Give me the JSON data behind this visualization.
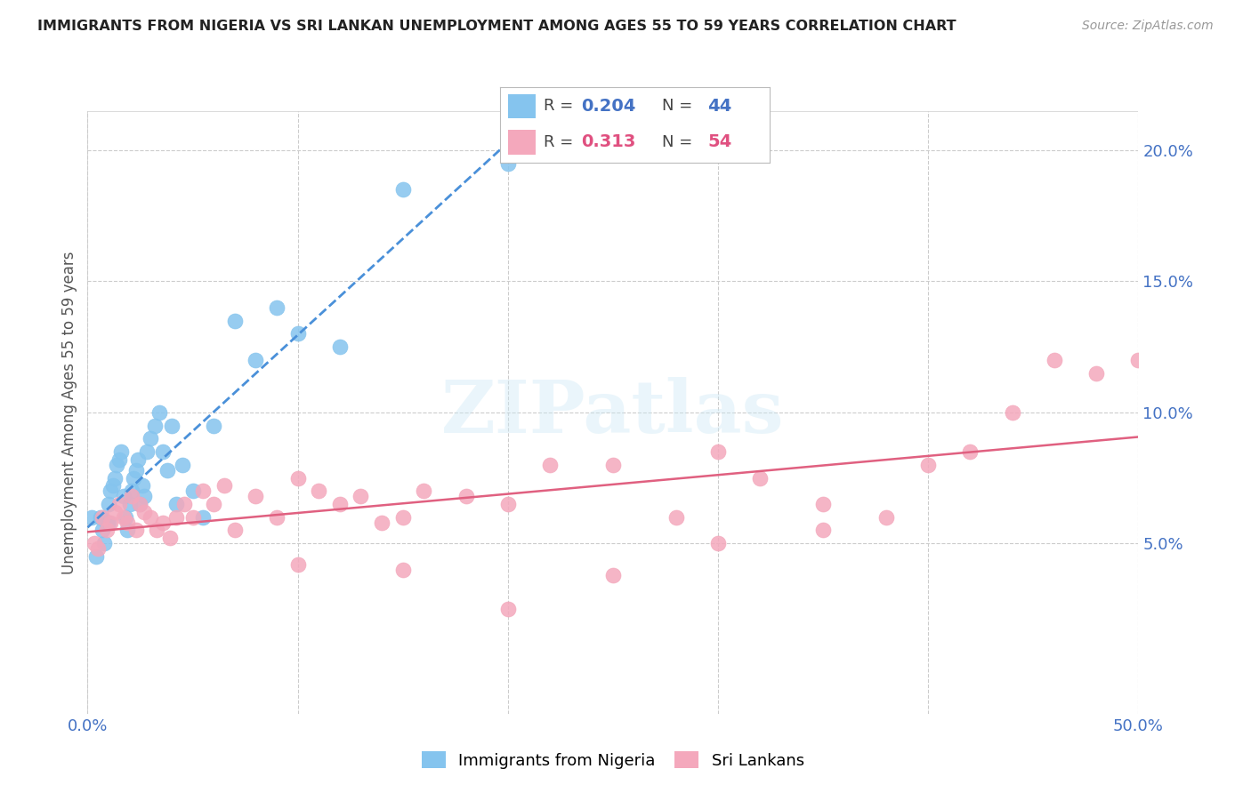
{
  "title": "IMMIGRANTS FROM NIGERIA VS SRI LANKAN UNEMPLOYMENT AMONG AGES 55 TO 59 YEARS CORRELATION CHART",
  "source": "Source: ZipAtlas.com",
  "ylabel": "Unemployment Among Ages 55 to 59 years",
  "xlim": [
    0.0,
    0.5
  ],
  "ylim": [
    -0.015,
    0.215
  ],
  "x_tick_positions": [
    0.0,
    0.1,
    0.2,
    0.3,
    0.4,
    0.5
  ],
  "x_tick_labels": [
    "0.0%",
    "",
    "",
    "",
    "",
    "50.0%"
  ],
  "y_tick_positions": [
    0.05,
    0.1,
    0.15,
    0.2
  ],
  "y_tick_labels": [
    "5.0%",
    "10.0%",
    "15.0%",
    "20.0%"
  ],
  "nigeria_color": "#85c4ee",
  "srilankan_color": "#f4a8bc",
  "nigeria_line_color": "#4a90d9",
  "srilankan_line_color": "#e06080",
  "nigeria_x": [
    0.002,
    0.004,
    0.006,
    0.007,
    0.008,
    0.009,
    0.01,
    0.01,
    0.011,
    0.012,
    0.013,
    0.014,
    0.015,
    0.016,
    0.017,
    0.018,
    0.019,
    0.02,
    0.021,
    0.022,
    0.023,
    0.024,
    0.025,
    0.026,
    0.027,
    0.028,
    0.03,
    0.032,
    0.034,
    0.036,
    0.038,
    0.04,
    0.042,
    0.045,
    0.05,
    0.055,
    0.06,
    0.07,
    0.08,
    0.09,
    0.1,
    0.12,
    0.15,
    0.2
  ],
  "nigeria_y": [
    0.06,
    0.045,
    0.06,
    0.055,
    0.05,
    0.058,
    0.065,
    0.058,
    0.07,
    0.072,
    0.075,
    0.08,
    0.082,
    0.085,
    0.068,
    0.06,
    0.055,
    0.065,
    0.07,
    0.075,
    0.078,
    0.082,
    0.065,
    0.072,
    0.068,
    0.085,
    0.09,
    0.095,
    0.1,
    0.085,
    0.078,
    0.095,
    0.065,
    0.08,
    0.07,
    0.06,
    0.095,
    0.135,
    0.12,
    0.14,
    0.13,
    0.125,
    0.185,
    0.195
  ],
  "srilankan_x": [
    0.003,
    0.005,
    0.007,
    0.009,
    0.011,
    0.013,
    0.015,
    0.017,
    0.019,
    0.021,
    0.023,
    0.025,
    0.027,
    0.03,
    0.033,
    0.036,
    0.039,
    0.042,
    0.046,
    0.05,
    0.055,
    0.06,
    0.065,
    0.07,
    0.08,
    0.09,
    0.1,
    0.11,
    0.12,
    0.13,
    0.14,
    0.15,
    0.16,
    0.18,
    0.2,
    0.22,
    0.25,
    0.28,
    0.3,
    0.32,
    0.35,
    0.38,
    0.4,
    0.42,
    0.44,
    0.46,
    0.48,
    0.5,
    0.35,
    0.3,
    0.25,
    0.2,
    0.15,
    0.1
  ],
  "srilankan_y": [
    0.05,
    0.048,
    0.06,
    0.055,
    0.058,
    0.062,
    0.065,
    0.06,
    0.058,
    0.068,
    0.055,
    0.065,
    0.062,
    0.06,
    0.055,
    0.058,
    0.052,
    0.06,
    0.065,
    0.06,
    0.07,
    0.065,
    0.072,
    0.055,
    0.068,
    0.06,
    0.075,
    0.07,
    0.065,
    0.068,
    0.058,
    0.06,
    0.07,
    0.068,
    0.065,
    0.08,
    0.08,
    0.06,
    0.085,
    0.075,
    0.065,
    0.06,
    0.08,
    0.085,
    0.1,
    0.12,
    0.115,
    0.12,
    0.055,
    0.05,
    0.038,
    0.025,
    0.04,
    0.042
  ],
  "watermark_text": "ZIPatlas",
  "background_color": "#ffffff",
  "grid_color": "#cccccc",
  "title_color": "#222222",
  "source_color": "#999999",
  "tick_color": "#4472c4",
  "ylabel_color": "#555555",
  "legend_nigeria_label": "Immigrants from Nigeria",
  "legend_srilankan_label": "Sri Lankans"
}
